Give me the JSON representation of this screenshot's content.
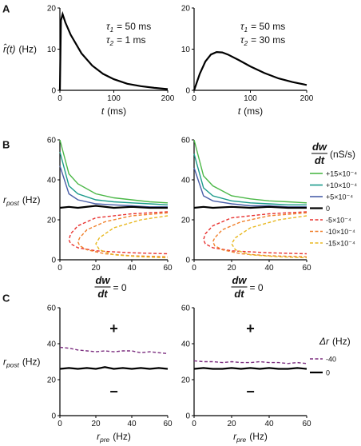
{
  "chart_data": [
    {
      "type": "line",
      "panel": "A",
      "xlim": [
        0,
        200
      ],
      "xticks": [
        0,
        100,
        200
      ],
      "ylim": [
        0,
        20
      ],
      "yticks": [
        0,
        10,
        20
      ],
      "xlabel": {
        "main": "t",
        "unit": "(ms)"
      },
      "ylabel": {
        "main": "r̂(t)",
        "unit": "(Hz)"
      },
      "annotations": [
        {
          "main": "τ",
          "sub": "1",
          "unit": "= 50 ms"
        },
        {
          "main": "τ",
          "sub": "2",
          "unit": "= 1 ms"
        }
      ],
      "series": [
        {
          "color": "#000000",
          "x": [
            0,
            2,
            5,
            10,
            20,
            40,
            60,
            80,
            100,
            125,
            150,
            175,
            200
          ],
          "values": [
            0,
            17,
            18.5,
            16.5,
            13.5,
            9,
            6,
            4,
            2.7,
            1.6,
            1,
            0.6,
            0.3
          ]
        }
      ]
    },
    {
      "type": "line",
      "xlim": [
        0,
        200
      ],
      "xticks": [
        0,
        100,
        200
      ],
      "ylim": [
        0,
        20
      ],
      "yticks": [
        0,
        10,
        20
      ],
      "xlabel": {
        "main": "t",
        "unit": "(ms)"
      },
      "annotations": [
        {
          "main": "τ",
          "sub": "1",
          "unit": "= 50 ms"
        },
        {
          "main": "τ",
          "sub": "2",
          "unit": "= 30 ms"
        }
      ],
      "series": [
        {
          "color": "#000000",
          "x": [
            0,
            10,
            20,
            30,
            40,
            50,
            60,
            80,
            100,
            125,
            150,
            175,
            200
          ],
          "values": [
            0,
            4,
            7,
            8.7,
            9.3,
            9.2,
            8.7,
            7.3,
            5.8,
            4.2,
            2.9,
            2,
            1.3
          ]
        }
      ]
    },
    {
      "type": "line",
      "panel": "B",
      "xlim": [
        0,
        60
      ],
      "xticks": [
        0,
        20,
        40,
        60
      ],
      "ylim": [
        0,
        60
      ],
      "yticks": [
        0,
        20,
        40,
        60
      ],
      "ylabel": {
        "main": "r",
        "sub": "post",
        "unit": "(Hz)"
      },
      "series": [
        {
          "name": "+15×10⁻⁴",
          "color": "#4cb848",
          "x": [
            0,
            5,
            10,
            20,
            30,
            40,
            50,
            60
          ],
          "values": [
            60,
            43,
            38,
            33,
            31,
            30,
            29,
            28.5
          ]
        },
        {
          "name": "+10×10⁻⁴",
          "color": "#1a9a8a",
          "x": [
            0,
            5,
            10,
            20,
            30,
            40,
            50,
            60
          ],
          "values": [
            54,
            37,
            33,
            30,
            29,
            28.5,
            28,
            27.5
          ]
        },
        {
          "name": "+5×10⁻⁴",
          "color": "#4a5fa8",
          "x": [
            0,
            5,
            10,
            20,
            30,
            40,
            50,
            60
          ],
          "values": [
            47,
            33,
            30,
            28,
            27.5,
            27,
            26.5,
            26.5
          ]
        },
        {
          "name": "0",
          "color": "#000000",
          "x": [
            0,
            5,
            10,
            20,
            30,
            40,
            50,
            60
          ],
          "values": [
            26,
            26.5,
            26,
            27,
            26,
            26.5,
            26,
            26
          ]
        },
        {
          "name": "-5×10⁻⁴",
          "color": "#e8312f",
          "dashed": true,
          "x": [
            60,
            40,
            20,
            10,
            6,
            5,
            6,
            10,
            20,
            40,
            60
          ],
          "values": [
            24,
            23,
            21,
            17,
            13,
            10,
            8,
            6,
            4.5,
            3.5,
            3
          ]
        },
        {
          "name": "-10×10⁻⁴",
          "color": "#f07f2a",
          "dashed": true,
          "x": [
            60,
            40,
            25,
            15,
            11,
            10,
            11,
            15,
            25,
            40,
            60
          ],
          "values": [
            23.5,
            22,
            19,
            15,
            11,
            9,
            7,
            5,
            3,
            2,
            1.5
          ]
        },
        {
          "name": "-15×10⁻⁴",
          "color": "#e8b820",
          "dashed": true,
          "x": [
            60,
            45,
            30,
            22,
            20,
            22,
            30,
            45,
            60
          ],
          "values": [
            22,
            20,
            16,
            11,
            8,
            5,
            2.5,
            1.5,
            1
          ]
        }
      ]
    },
    {
      "type": "line",
      "xlim": [
        0,
        60
      ],
      "xticks": [
        0,
        20,
        40,
        60
      ],
      "ylim": [
        0,
        60
      ],
      "yticks": [
        0,
        20,
        40,
        60
      ],
      "legend": "right",
      "legend_title": {
        "num": "dw",
        "den": "dt",
        "rest": "(nS/s)"
      },
      "series": [
        {
          "name": "+15×10⁻⁴",
          "color": "#4cb848",
          "x": [
            0,
            5,
            10,
            20,
            30,
            40,
            50,
            60
          ],
          "values": [
            60,
            42,
            37,
            32,
            30.5,
            29.5,
            29,
            28.5
          ]
        },
        {
          "name": "+10×10⁻⁴",
          "color": "#1a9a8a",
          "x": [
            0,
            5,
            10,
            20,
            30,
            40,
            50,
            60
          ],
          "values": [
            53,
            36,
            32,
            29.5,
            28.5,
            28,
            27.5,
            27.5
          ]
        },
        {
          "name": "+5×10⁻⁴",
          "color": "#4a5fa8",
          "x": [
            0,
            5,
            10,
            20,
            30,
            40,
            50,
            60
          ],
          "values": [
            46,
            32,
            29.5,
            28,
            27,
            27,
            26.5,
            26.5
          ]
        },
        {
          "name": "0",
          "color": "#000000",
          "x": [
            0,
            5,
            10,
            20,
            30,
            40,
            50,
            60
          ],
          "values": [
            26,
            26.5,
            26,
            26.5,
            26,
            26.5,
            26,
            26
          ]
        },
        {
          "name": "-5×10⁻⁴",
          "color": "#e8312f",
          "dashed": true,
          "x": [
            60,
            40,
            20,
            10,
            6,
            5,
            6,
            10,
            20,
            40,
            60
          ],
          "values": [
            24,
            23,
            21,
            17,
            13,
            10,
            8,
            6,
            4.5,
            3.5,
            3
          ]
        },
        {
          "name": "-10×10⁻⁴",
          "color": "#f07f2a",
          "dashed": true,
          "x": [
            60,
            40,
            25,
            15,
            11,
            10,
            11,
            15,
            25,
            40,
            60
          ],
          "values": [
            23.5,
            22,
            19,
            15,
            11,
            9,
            7,
            5,
            3,
            2,
            1.5
          ]
        },
        {
          "name": "-15×10⁻⁴",
          "color": "#e8b820",
          "dashed": true,
          "x": [
            60,
            45,
            30,
            22,
            20,
            22,
            30,
            45,
            60
          ],
          "values": [
            22,
            20,
            16,
            11,
            8,
            5,
            2.5,
            1.5,
            1
          ]
        }
      ]
    },
    {
      "type": "line",
      "panel": "C",
      "title": {
        "num": "dw",
        "den": "dt",
        "rest": "= 0"
      },
      "xlim": [
        0,
        60
      ],
      "xticks": [
        0,
        20,
        40,
        60
      ],
      "ylim": [
        0,
        60
      ],
      "yticks": [
        0,
        20,
        40,
        60
      ],
      "xlabel": {
        "main": "r",
        "sub": "pre",
        "unit": "(Hz)"
      },
      "ylabel": {
        "main": "r",
        "sub": "post",
        "unit": "(Hz)"
      },
      "markers": [
        {
          "text": "+",
          "color": "#1a9a8a"
        },
        {
          "text": "−",
          "color": "#e8312f"
        }
      ],
      "x": [
        0,
        5,
        10,
        15,
        20,
        25,
        30,
        35,
        40,
        45,
        50,
        55,
        60
      ],
      "series": [
        {
          "name": "-40",
          "color": "#7b2d7f",
          "dashed": true,
          "values": [
            38,
            37.5,
            36.5,
            36,
            35.5,
            36,
            35.5,
            36,
            36,
            35,
            35.5,
            35,
            34.5
          ]
        },
        {
          "name": "0",
          "color": "#000000",
          "values": [
            26,
            26.5,
            26,
            26.5,
            26,
            27,
            26,
            26.5,
            26,
            26.5,
            26,
            26.5,
            26
          ]
        }
      ]
    },
    {
      "type": "line",
      "title": {
        "num": "dw",
        "den": "dt",
        "rest": "= 0"
      },
      "xlim": [
        0,
        60
      ],
      "xticks": [
        0,
        20,
        40,
        60
      ],
      "ylim": [
        0,
        60
      ],
      "yticks": [
        0,
        20,
        40,
        60
      ],
      "xlabel": {
        "main": "r",
        "sub": "pre",
        "unit": "(Hz)"
      },
      "markers": [
        {
          "text": "+",
          "color": "#1a9a8a"
        },
        {
          "text": "−",
          "color": "#e8312f"
        }
      ],
      "legend": "right",
      "legend_title": {
        "main": "Δr",
        "unit": "(Hz)"
      },
      "x": [
        0,
        5,
        10,
        15,
        20,
        25,
        30,
        35,
        40,
        45,
        50,
        55,
        60
      ],
      "series": [
        {
          "name": "-40",
          "color": "#7b2d7f",
          "dashed": true,
          "values": [
            30.5,
            30,
            30,
            29.5,
            30,
            29.5,
            29.5,
            30,
            29.5,
            29.5,
            29,
            29.5,
            29
          ]
        },
        {
          "name": "0",
          "color": "#000000",
          "values": [
            26,
            26.5,
            26,
            26,
            26.5,
            26,
            26.5,
            26,
            26.5,
            26,
            26,
            26.5,
            26
          ]
        }
      ]
    }
  ]
}
